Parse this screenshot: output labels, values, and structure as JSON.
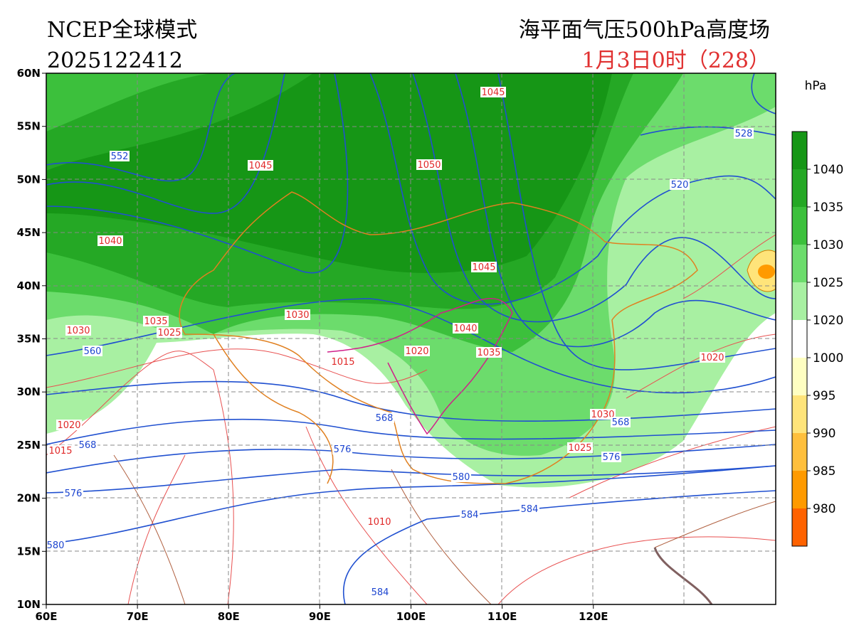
{
  "header": {
    "model": "NCEP全球模式",
    "init_time": "2025122412",
    "title": "海平面气压500hPa高度场",
    "valid_time": "1月3日0时（228）"
  },
  "axes": {
    "lat_labels": [
      "60N",
      "55N",
      "50N",
      "45N",
      "40N",
      "35N",
      "30N",
      "25N",
      "20N",
      "15N",
      "10N"
    ],
    "lon_labels": [
      "60E",
      "70E",
      "80E",
      "90E",
      "100E",
      "110E",
      "120E"
    ]
  },
  "colorbar": {
    "unit": "hPa",
    "ticks": [
      "1040",
      "1035",
      "1030",
      "1025",
      "1020",
      "1000",
      "995",
      "990",
      "985",
      "980"
    ],
    "colors": [
      "#169616",
      "#25a825",
      "#3cc03c",
      "#6cdc6c",
      "#a8f0a2",
      "#ffffff",
      "#ffffc2",
      "#ffe47a",
      "#ffbf3c",
      "#ff9a00",
      "#ff6200"
    ]
  },
  "pressure_labels": [
    "1045",
    "1045",
    "1050",
    "1040",
    "1045",
    "1030",
    "1035",
    "1025",
    "1030",
    "1040",
    "1035",
    "1020",
    "1015",
    "1020",
    "1020",
    "1015",
    "1030",
    "1025",
    "1010"
  ],
  "height_labels": [
    "552",
    "528",
    "520",
    "560",
    "568",
    "568",
    "568",
    "576",
    "576",
    "580",
    "576",
    "584",
    "584",
    "580",
    "584"
  ]
}
